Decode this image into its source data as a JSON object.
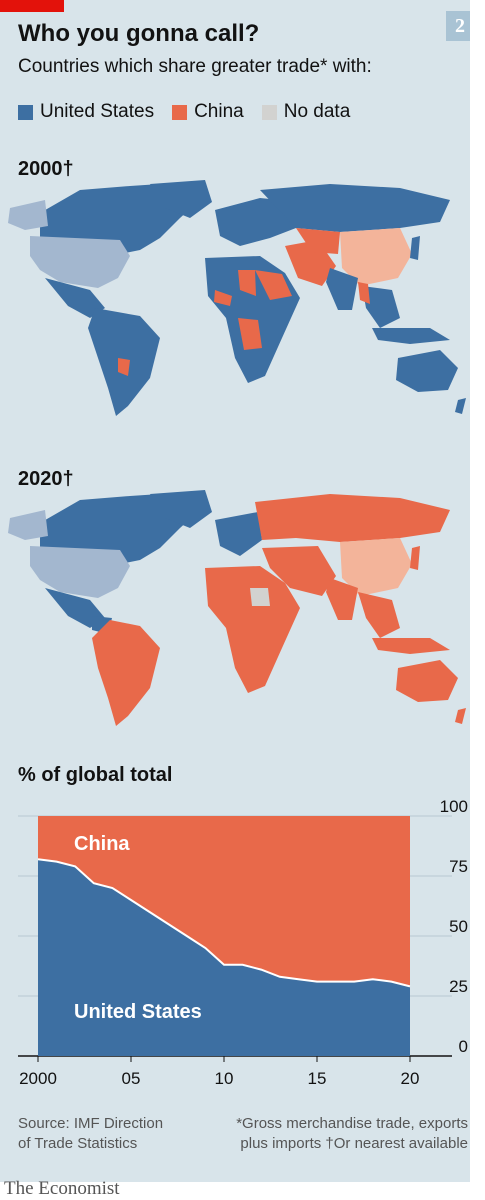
{
  "header": {
    "chart_number": "2",
    "title": "Who you gonna call?",
    "subtitle": "Countries which share greater trade* with:"
  },
  "legend": [
    {
      "label": "United States",
      "color": "#3d6fa2"
    },
    {
      "label": "China",
      "color": "#e8694a"
    },
    {
      "label": "No data",
      "color": "#d2d2d0"
    }
  ],
  "maps": {
    "year_2000": "2000†",
    "year_2020": "2020†"
  },
  "colors": {
    "us": "#3d6fa2",
    "china": "#e8694a",
    "us_light": "#a3b7cf",
    "china_light": "#f3b49a",
    "ocean": "#d8e4ea",
    "no_data": "#d2d2d0"
  },
  "chart_data": {
    "type": "area",
    "title": "% of global total",
    "x": [
      2000,
      2001,
      2002,
      2003,
      2004,
      2005,
      2006,
      2007,
      2008,
      2009,
      2010,
      2011,
      2012,
      2013,
      2014,
      2015,
      2016,
      2017,
      2018,
      2019,
      2020
    ],
    "xticks": [
      "2000",
      "05",
      "10",
      "15",
      "20"
    ],
    "xtick_values": [
      2000,
      2005,
      2010,
      2015,
      2020
    ],
    "yticks": [
      "0",
      "25",
      "50",
      "75",
      "100"
    ],
    "ylim": [
      0,
      100
    ],
    "series": [
      {
        "name": "United States",
        "values": [
          82,
          81,
          79,
          72,
          70,
          65,
          60,
          55,
          50,
          45,
          38,
          38,
          36,
          33,
          32,
          31,
          31,
          31,
          32,
          31,
          29
        ]
      },
      {
        "name": "China",
        "values": [
          18,
          19,
          21,
          28,
          30,
          35,
          40,
          45,
          50,
          55,
          62,
          62,
          64,
          67,
          68,
          69,
          69,
          69,
          68,
          69,
          71
        ]
      }
    ]
  },
  "footer": {
    "source_line1": "Source: IMF Direction",
    "source_line2": "of Trade Statistics",
    "footnote_line1": "*Gross merchandise trade, exports",
    "footnote_line2": "plus imports   †Or nearest available",
    "brand": "The Economist"
  }
}
